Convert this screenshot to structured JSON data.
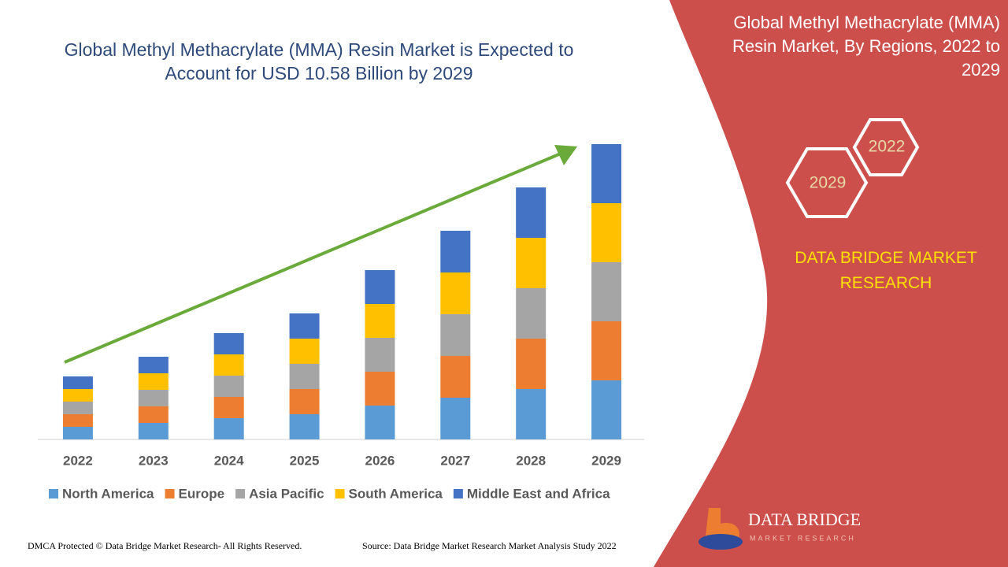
{
  "chart_data": {
    "type": "stacked-bar",
    "title": "Global Methyl Methacrylate (MMA) Resin Market is Expected to Account for USD 10.58 Billion by 2029",
    "categories": [
      "2022",
      "2023",
      "2024",
      "2025",
      "2026",
      "2027",
      "2028",
      "2029"
    ],
    "series": [
      {
        "name": "North America",
        "color": "#5b9bd5",
        "values": [
          16,
          21,
          27,
          32,
          43,
          53,
          64,
          75
        ]
      },
      {
        "name": "Europe",
        "color": "#ed7d31",
        "values": [
          16,
          21,
          27,
          32,
          43,
          53,
          64,
          75
        ]
      },
      {
        "name": "Asia Pacific",
        "color": "#a5a5a5",
        "values": [
          16,
          21,
          27,
          32,
          43,
          53,
          64,
          75
        ]
      },
      {
        "name": "South America",
        "color": "#ffc000",
        "values": [
          16,
          21,
          27,
          32,
          43,
          53,
          64,
          75
        ]
      },
      {
        "name": "Middle East and Africa",
        "color": "#4472c4",
        "values": [
          16,
          21,
          27,
          32,
          43,
          53,
          64,
          75
        ]
      }
    ],
    "ylim": [
      0,
      400
    ],
    "grid": false,
    "legend": "bottom"
  },
  "panel": {
    "title": "Global Methyl Methacrylate (MMA) Resin Market, By Regions, 2022 to 2029",
    "hexagons": [
      "2022",
      "2029"
    ],
    "brand": "DATA BRIDGE MARKET RESEARCH"
  },
  "logo": {
    "name": "DATA BRIDGE",
    "tagline": "MARKET RESEARCH"
  },
  "footer": {
    "left": "DMCA Protected © Data Bridge Market Research- All Rights Reserved.",
    "right": "Source: Data Bridge Market Research Market Analysis Study 2022"
  }
}
